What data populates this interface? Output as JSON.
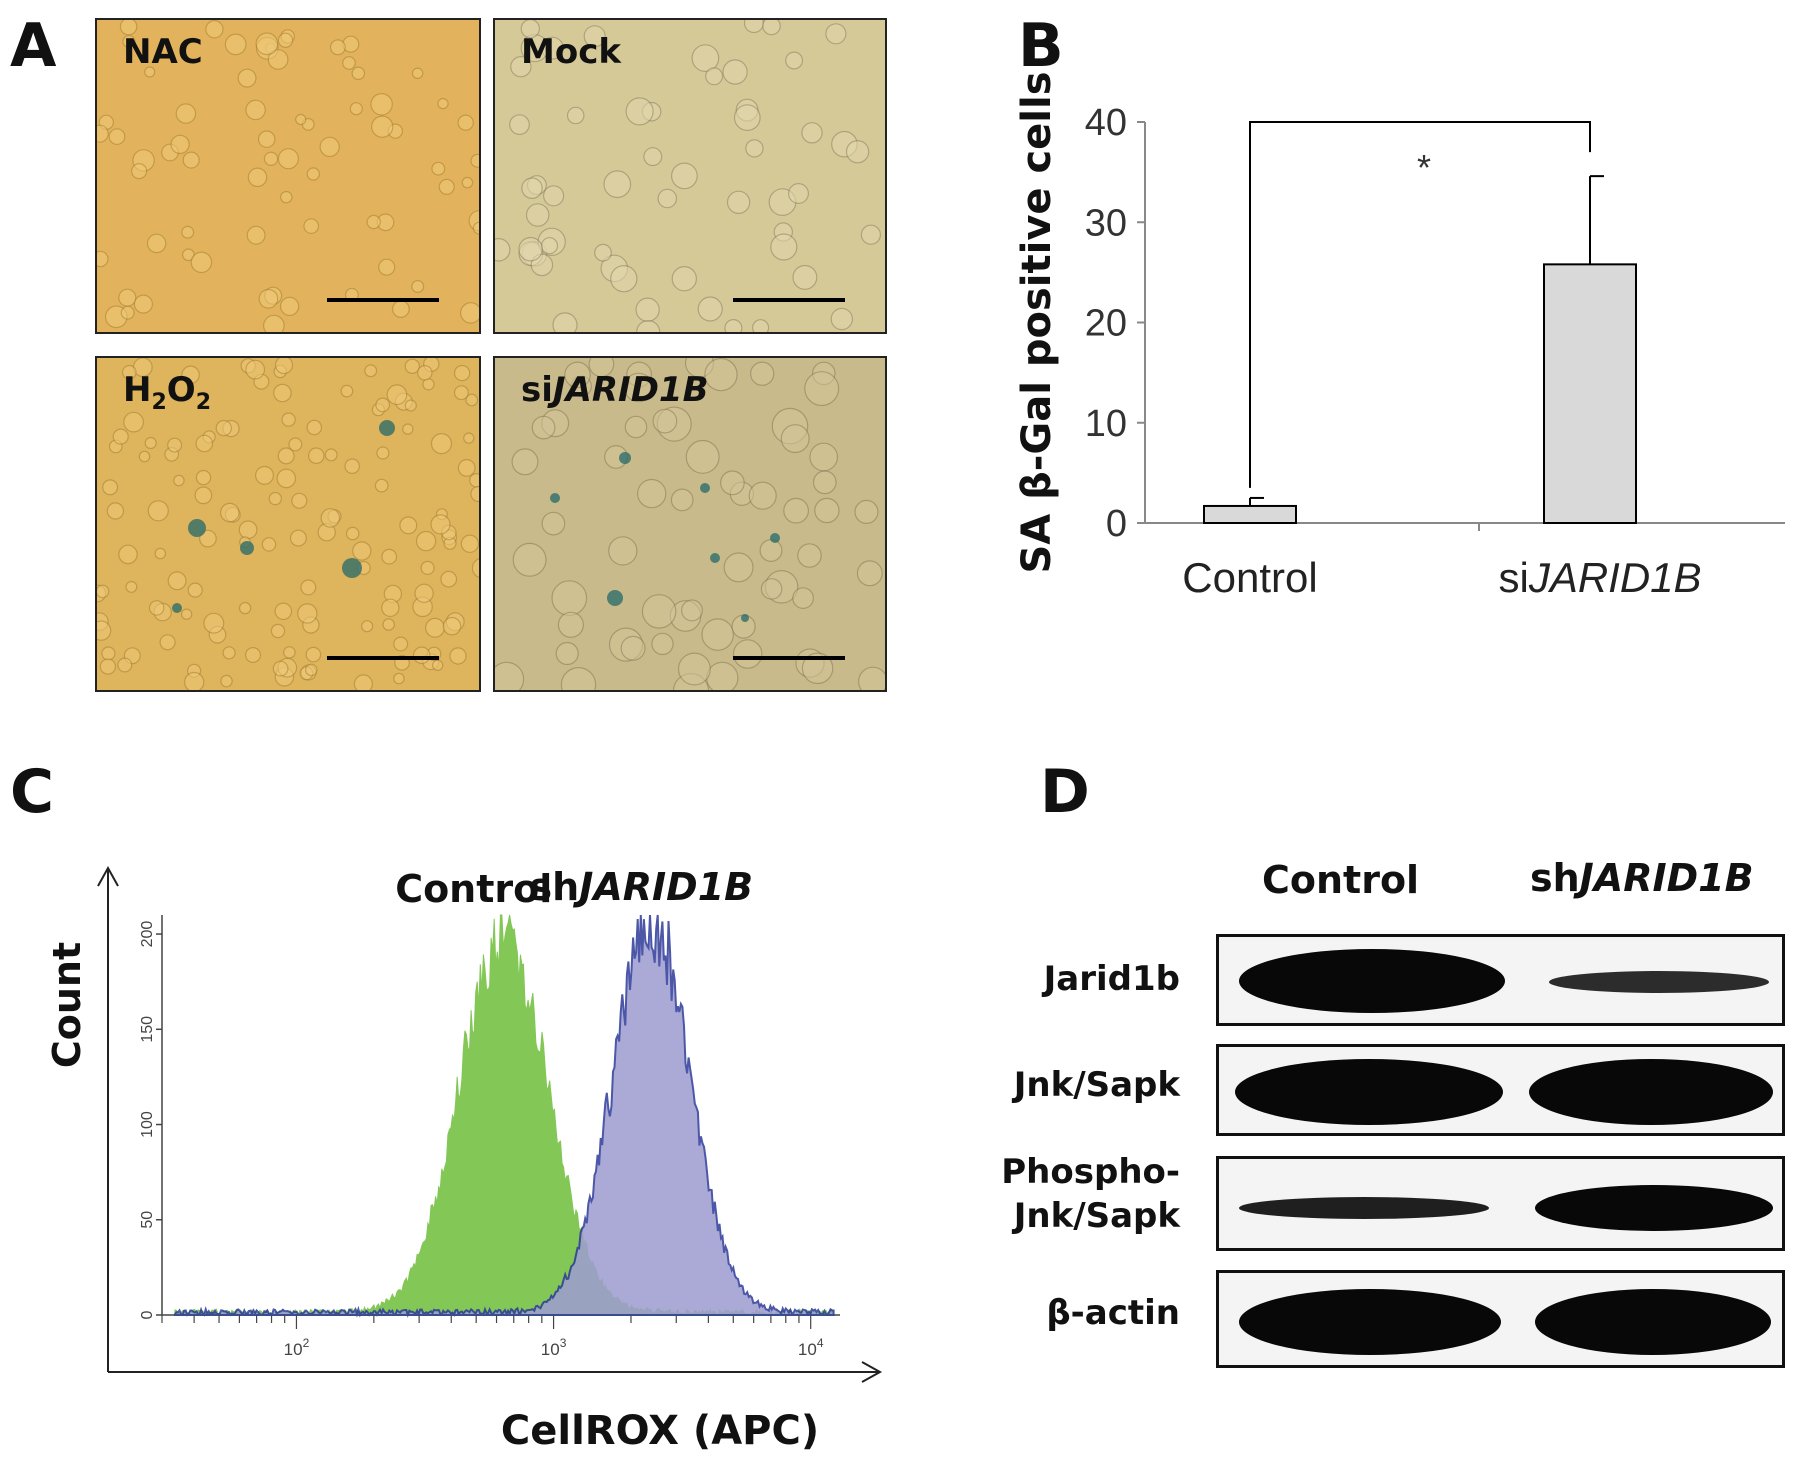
{
  "panels": {
    "a": {
      "letter": "A",
      "images": [
        {
          "label": "NAC"
        },
        {
          "label": "Mock"
        },
        {
          "label_main": "H",
          "label_sub1": "2",
          "label_mid": "O",
          "label_sub2": "2"
        },
        {
          "label_prefix": "si",
          "label_italic": "JARID1B"
        }
      ]
    },
    "b": {
      "letter": "B"
    },
    "c": {
      "letter": "C"
    },
    "d": {
      "letter": "D",
      "lane_headers": {
        "control": "Control",
        "sh_prefix": "sh",
        "sh_italic": "JARID1B"
      },
      "rows": [
        {
          "label": "Jarid1b",
          "band_intensity": [
            1.0,
            0.35
          ]
        },
        {
          "label": "Jnk/Sapk",
          "band_intensity": [
            1.0,
            1.0
          ]
        },
        {
          "label_line1": "Phospho-",
          "label_line2": "Jnk/Sapk",
          "band_intensity": [
            0.35,
            0.75
          ]
        },
        {
          "label": "β-actin",
          "band_intensity": [
            1.0,
            1.0
          ]
        }
      ]
    }
  },
  "chart_data": [
    {
      "type": "bar",
      "panel": "B",
      "categories": [
        "Control",
        "siJARID1B"
      ],
      "category_parts": [
        {
          "prefix": "",
          "italic": "Control"
        },
        {
          "prefix": "si",
          "italic": "JARID1B"
        }
      ],
      "values": [
        1.7,
        25.8
      ],
      "error": [
        0.8,
        8.8
      ],
      "ylabel": "SA β-Gal positive cells",
      "ylim": [
        0,
        40
      ],
      "yticks": [
        "0",
        "10",
        "20",
        "30",
        "40"
      ],
      "significance": "*",
      "bar_color": "#d9d9d9"
    },
    {
      "type": "area",
      "panel": "C",
      "xlabel": "CellROX (APC)",
      "ylabel": "Count",
      "x_scale": "log",
      "xlim": [
        30,
        13000
      ],
      "ylim": [
        0,
        210
      ],
      "xticks": [
        {
          "value": 100,
          "base": "10",
          "exp": "2"
        },
        {
          "value": 1000,
          "base": "10",
          "exp": "3"
        },
        {
          "value": 10000,
          "base": "10",
          "exp": "4"
        }
      ],
      "yticks": [
        "0",
        "50",
        "100",
        "150",
        "200"
      ],
      "series": [
        {
          "name": "Control",
          "color": "#7dc54f",
          "peak_x": 640,
          "peak_y": 200,
          "width_log": 0.17
        },
        {
          "name_prefix": "sh",
          "name_italic": "JARID1B",
          "color": "#9d9cd0",
          "edge_color": "#2d3a99",
          "peak_x": 2400,
          "peak_y": 205,
          "width_log": 0.15
        }
      ]
    }
  ]
}
